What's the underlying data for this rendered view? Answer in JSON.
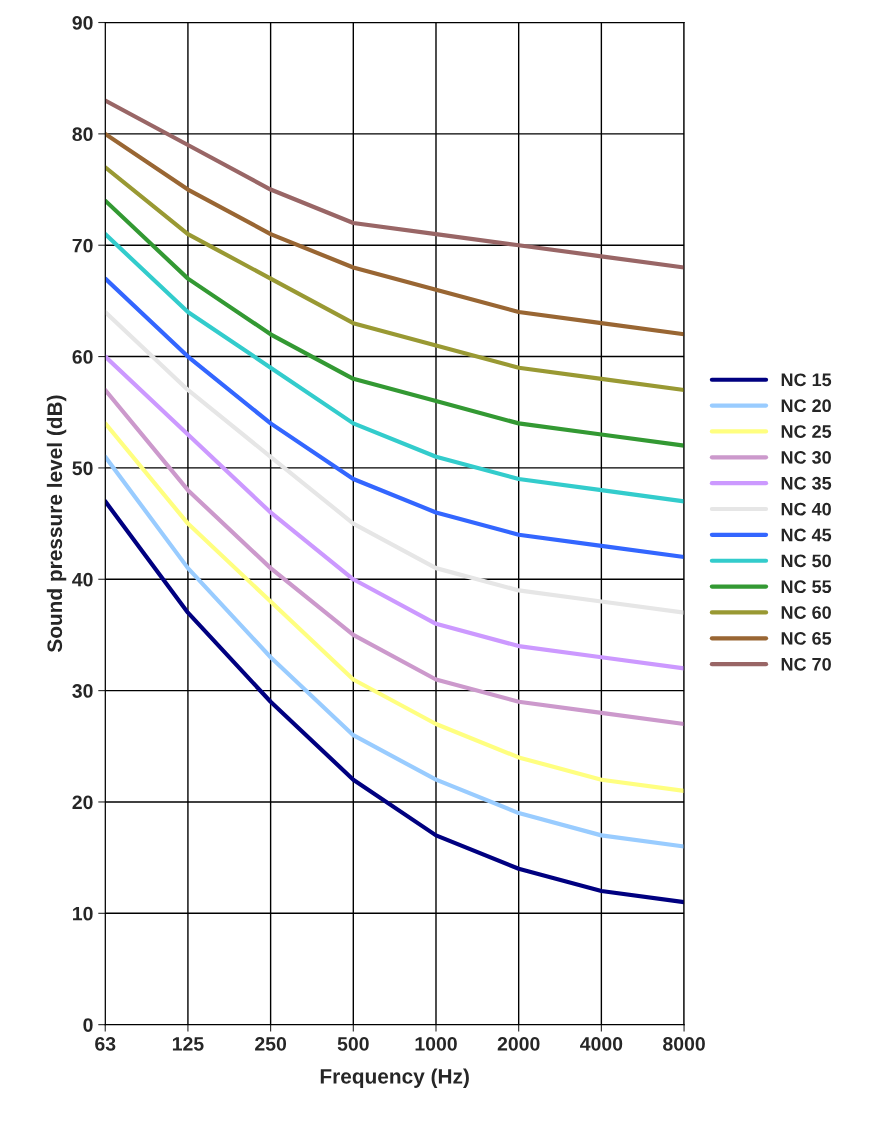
{
  "chart_data": {
    "type": "line",
    "xlabel": "Frequency (Hz)",
    "ylabel": "Sound pressure level (dB)",
    "categories": [
      "63",
      "125",
      "250",
      "500",
      "1000",
      "2000",
      "4000",
      "8000"
    ],
    "ylim": [
      0,
      90
    ],
    "yticks": [
      0,
      10,
      20,
      30,
      40,
      50,
      60,
      70,
      80,
      90
    ],
    "grid": true,
    "legend": "right",
    "marker": "none",
    "line_style": "solid",
    "series": [
      {
        "name": "NC 15",
        "color": "#000080",
        "values": [
          47,
          37,
          29,
          22,
          17,
          14,
          12,
          11
        ]
      },
      {
        "name": "NC 20",
        "color": "#99ccff",
        "values": [
          51,
          41,
          33,
          26,
          22,
          19,
          17,
          16
        ]
      },
      {
        "name": "NC 25",
        "color": "#ffff80",
        "values": [
          54,
          45,
          38,
          31,
          27,
          24,
          22,
          21
        ]
      },
      {
        "name": "NC 30",
        "color": "#cc99cc",
        "values": [
          57,
          48,
          41,
          35,
          31,
          29,
          28,
          27
        ]
      },
      {
        "name": "NC 35",
        "color": "#cc99ff",
        "values": [
          60,
          53,
          46,
          40,
          36,
          34,
          33,
          32
        ]
      },
      {
        "name": "NC 40",
        "color": "#e6e6e6",
        "values": [
          64,
          57,
          51,
          45,
          41,
          39,
          38,
          37
        ]
      },
      {
        "name": "NC 45",
        "color": "#3366ff",
        "values": [
          67,
          60,
          54,
          49,
          46,
          44,
          43,
          42
        ]
      },
      {
        "name": "NC 50",
        "color": "#33cccc",
        "values": [
          71,
          64,
          59,
          54,
          51,
          49,
          48,
          47
        ]
      },
      {
        "name": "NC 55",
        "color": "#339933",
        "values": [
          74,
          67,
          62,
          58,
          56,
          54,
          53,
          52
        ]
      },
      {
        "name": "NC 60",
        "color": "#999933",
        "values": [
          77,
          71,
          67,
          63,
          61,
          59,
          58,
          57
        ]
      },
      {
        "name": "NC 65",
        "color": "#996633",
        "values": [
          80,
          75,
          71,
          68,
          66,
          64,
          63,
          62
        ]
      },
      {
        "name": "NC 70",
        "color": "#996666",
        "values": [
          83,
          79,
          75,
          72,
          71,
          70,
          69,
          68
        ]
      }
    ]
  }
}
